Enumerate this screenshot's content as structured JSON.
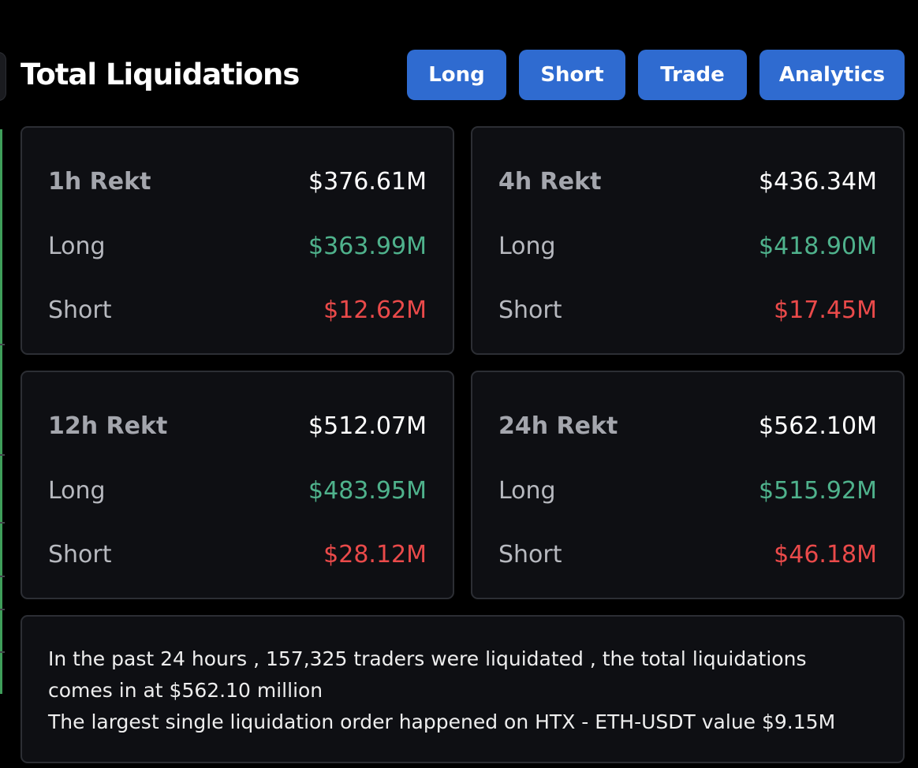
{
  "header": {
    "title": "Total Liquidations",
    "buttons": {
      "long": "Long",
      "short": "Short",
      "trade": "Trade",
      "analytics": "Analytics"
    }
  },
  "cards": [
    {
      "period": "1h Rekt",
      "total": "$376.61M",
      "long_label": "Long",
      "long_value": "$363.99M",
      "short_label": "Short",
      "short_value": "$12.62M"
    },
    {
      "period": "4h Rekt",
      "total": "$436.34M",
      "long_label": "Long",
      "long_value": "$418.90M",
      "short_label": "Short",
      "short_value": "$17.45M"
    },
    {
      "period": "12h Rekt",
      "total": "$512.07M",
      "long_label": "Long",
      "long_value": "$483.95M",
      "short_label": "Short",
      "short_value": "$28.12M"
    },
    {
      "period": "24h Rekt",
      "total": "$562.10M",
      "long_label": "Long",
      "long_value": "$515.92M",
      "short_label": "Short",
      "short_value": "$46.18M"
    }
  ],
  "summary": {
    "line1": "In the past 24 hours , 157,325 traders were liquidated , the total liquidations comes in at $562.10 million",
    "line2": "The largest single liquidation order happened on HTX - ETH-USDT value $9.15M"
  },
  "colors": {
    "background": "#000000",
    "card": "#0e0f13",
    "button": "#2f6bd0",
    "long": "#4fb28c",
    "short": "#ea4a4a"
  }
}
